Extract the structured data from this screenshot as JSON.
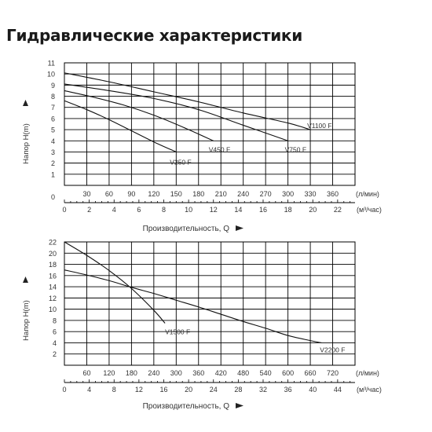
{
  "page": {
    "title": "Гидравлические характеристики"
  },
  "chart_data": [
    {
      "type": "line",
      "ylabel": "Напор H(m)",
      "xlabel": "Производительность, Q",
      "ylim": [
        0,
        11
      ],
      "y_ticks": [
        "0",
        "1",
        "2",
        "3",
        "4",
        "5",
        "6",
        "7",
        "8",
        "9",
        "10",
        "11"
      ],
      "x_primary": {
        "unit": "(л/мин)",
        "max": 390,
        "ticks": [
          "30",
          "60",
          "90",
          "120",
          "150",
          "180",
          "210",
          "240",
          "270",
          "300",
          "330",
          "360"
        ]
      },
      "x_secondary": {
        "unit": "(м³/час)",
        "max": 23.4,
        "ticks": [
          "0",
          "2",
          "4",
          "6",
          "8",
          "10",
          "12",
          "14",
          "16",
          "18",
          "20",
          "22"
        ]
      },
      "grid": "major-horizontal-and-vertical",
      "series": [
        {
          "name": "V250 F",
          "points": [
            [
              0,
              7.6
            ],
            [
              30,
              6.8
            ],
            [
              60,
              5.9
            ],
            [
              90,
              4.9
            ],
            [
              120,
              3.9
            ],
            [
              150,
              3.0
            ]
          ]
        },
        {
          "name": "V450 F",
          "points": [
            [
              0,
              8.5
            ],
            [
              40,
              7.9
            ],
            [
              80,
              7.2
            ],
            [
              120,
              6.3
            ],
            [
              160,
              5.2
            ],
            [
              200,
              4.0
            ]
          ]
        },
        {
          "name": "V750 F",
          "points": [
            [
              0,
              9.1
            ],
            [
              60,
              8.5
            ],
            [
              120,
              7.8
            ],
            [
              180,
              6.8
            ],
            [
              240,
              5.4
            ],
            [
              300,
              4.0
            ]
          ]
        },
        {
          "name": "V1100 F",
          "points": [
            [
              0,
              10.1
            ],
            [
              60,
              9.3
            ],
            [
              120,
              8.4
            ],
            [
              180,
              7.5
            ],
            [
              240,
              6.5
            ],
            [
              300,
              5.6
            ],
            [
              330,
              5.0
            ]
          ]
        }
      ]
    },
    {
      "type": "line",
      "ylabel": "Напор H(m)",
      "xlabel": "Производительность, Q",
      "ylim": [
        0,
        22
      ],
      "y_ticks": [
        "2",
        "4",
        "6",
        "8",
        "10",
        "12",
        "14",
        "16",
        "18",
        "20",
        "22"
      ],
      "x_primary": {
        "unit": "(л/мин)",
        "max": 780,
        "ticks": [
          "60",
          "120",
          "180",
          "240",
          "300",
          "360",
          "420",
          "480",
          "540",
          "600",
          "660",
          "720"
        ]
      },
      "x_secondary": {
        "unit": "(м³/час)",
        "max": 46.8,
        "ticks": [
          "0",
          "4",
          "8",
          "12",
          "16",
          "20",
          "24",
          "28",
          "32",
          "36",
          "40",
          "44"
        ]
      },
      "grid": "major-horizontal-and-vertical",
      "series": [
        {
          "name": "V1500 F",
          "points": [
            [
              0,
              22.0
            ],
            [
              60,
              19.6
            ],
            [
              120,
              16.9
            ],
            [
              180,
              13.7
            ],
            [
              240,
              9.8
            ],
            [
              270,
              7.5
            ]
          ]
        },
        {
          "name": "V2200 F",
          "points": [
            [
              0,
              17.0
            ],
            [
              60,
              16.1
            ],
            [
              120,
              15.1
            ],
            [
              180,
              13.9
            ],
            [
              240,
              12.8
            ],
            [
              300,
              11.6
            ],
            [
              360,
              10.4
            ],
            [
              420,
              9.1
            ],
            [
              480,
              7.8
            ],
            [
              540,
              6.6
            ],
            [
              600,
              5.3
            ],
            [
              660,
              4.4
            ],
            [
              690,
              4.0
            ]
          ]
        }
      ]
    }
  ]
}
